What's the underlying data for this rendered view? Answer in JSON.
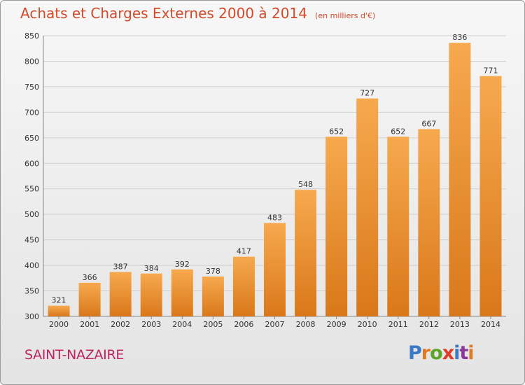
{
  "header": {
    "title": "Achats et Charges Externes 2000 à 2014",
    "subtitle": "(en milliers d'€)"
  },
  "footer": {
    "city": "SAINT-NAZAIRE",
    "logo_text": "Proxiti"
  },
  "colors": {
    "bar_top": "#f7a94e",
    "bar_bottom": "#d9781a",
    "title": "#d24a2a",
    "city": "#c0245f",
    "logo_letters": [
      "#3a78c8",
      "#e07a20",
      "#5aa52a",
      "#e03a2a",
      "#3a78c8",
      "#8a3a9a",
      "#e07a20"
    ]
  },
  "chart_data": {
    "type": "bar",
    "title": "Achats et Charges Externes 2000 à 2014",
    "subtitle": "(en milliers d'€)",
    "categories": [
      "2000",
      "2001",
      "2002",
      "2003",
      "2004",
      "2005",
      "2006",
      "2007",
      "2008",
      "2009",
      "2010",
      "2011",
      "2012",
      "2013",
      "2014"
    ],
    "values": [
      321,
      366,
      387,
      384,
      392,
      378,
      417,
      483,
      548,
      652,
      727,
      652,
      667,
      836,
      771
    ],
    "ylim": [
      300,
      850
    ],
    "yticks": [
      300,
      350,
      400,
      450,
      500,
      550,
      600,
      650,
      700,
      750,
      800,
      850
    ],
    "grid": true,
    "data_labels": true,
    "legend": "none"
  }
}
